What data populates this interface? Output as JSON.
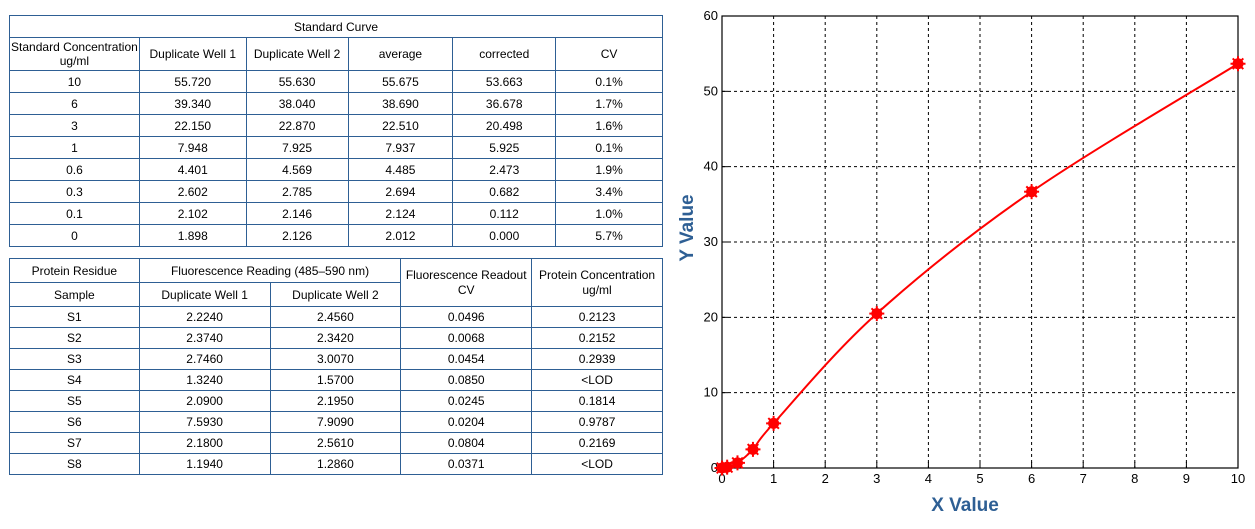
{
  "std_table": {
    "title": "Standard Curve",
    "headers": [
      "Standard Concentration ug/ml",
      "Duplicate Well 1",
      "Duplicate Well 2",
      "average",
      "corrected",
      "CV"
    ],
    "rows": [
      [
        "10",
        "55.720",
        "55.630",
        "55.675",
        "53.663",
        "0.1%"
      ],
      [
        "6",
        "39.340",
        "38.040",
        "38.690",
        "36.678",
        "1.7%"
      ],
      [
        "3",
        "22.150",
        "22.870",
        "22.510",
        "20.498",
        "1.6%"
      ],
      [
        "1",
        "7.948",
        "7.925",
        "7.937",
        "5.925",
        "0.1%"
      ],
      [
        "0.6",
        "4.401",
        "4.569",
        "4.485",
        "2.473",
        "1.9%"
      ],
      [
        "0.3",
        "2.602",
        "2.785",
        "2.694",
        "0.682",
        "3.4%"
      ],
      [
        "0.1",
        "2.102",
        "2.146",
        "2.124",
        "0.112",
        "1.0%"
      ],
      [
        "0",
        "1.898",
        "2.126",
        "2.012",
        "0.000",
        "5.7%"
      ]
    ]
  },
  "protein_table": {
    "h_residue": "Protein Residue",
    "h_reading": "Fluorescence Reading (485–590 nm)",
    "h_readout": "Fluorescence Readout CV",
    "h_conc": "Protein Concentration ug/ml",
    "h_sample": "Sample",
    "h_dw1": "Duplicate Well 1",
    "h_dw2": "Duplicate Well 2",
    "rows": [
      [
        "S1",
        "2.2240",
        "2.4560",
        "0.0496",
        "0.2123"
      ],
      [
        "S2",
        "2.3740",
        "2.3420",
        "0.0068",
        "0.2152"
      ],
      [
        "S3",
        "2.7460",
        "3.0070",
        "0.0454",
        "0.2939"
      ],
      [
        "S4",
        "1.3240",
        "1.5700",
        "0.0850",
        "<LOD"
      ],
      [
        "S5",
        "2.0900",
        "2.1950",
        "0.0245",
        "0.1814"
      ],
      [
        "S6",
        "7.5930",
        "7.9090",
        "0.0204",
        "0.9787"
      ],
      [
        "S7",
        "2.1800",
        "2.5610",
        "0.0804",
        "0.2169"
      ],
      [
        "S8",
        "1.1940",
        "1.2860",
        "0.0371",
        "<LOD"
      ]
    ]
  },
  "chart_data": {
    "type": "line",
    "title": "",
    "xlabel": "X Value",
    "ylabel": "Y Value",
    "xlim": [
      0,
      10
    ],
    "ylim": [
      0,
      60
    ],
    "xticks": [
      0,
      1,
      2,
      3,
      4,
      5,
      6,
      7,
      8,
      9,
      10
    ],
    "yticks": [
      0,
      10,
      20,
      30,
      40,
      50,
      60
    ],
    "grid": true,
    "line_color": "#ff0000",
    "axis_label_color": "#2e5f94",
    "points": [
      {
        "x": 0,
        "y": 0.0
      },
      {
        "x": 0.1,
        "y": 0.112
      },
      {
        "x": 0.3,
        "y": 0.682
      },
      {
        "x": 0.6,
        "y": 2.473
      },
      {
        "x": 1,
        "y": 5.925
      },
      {
        "x": 3,
        "y": 20.498
      },
      {
        "x": 6,
        "y": 36.678
      },
      {
        "x": 10,
        "y": 53.663
      }
    ]
  }
}
